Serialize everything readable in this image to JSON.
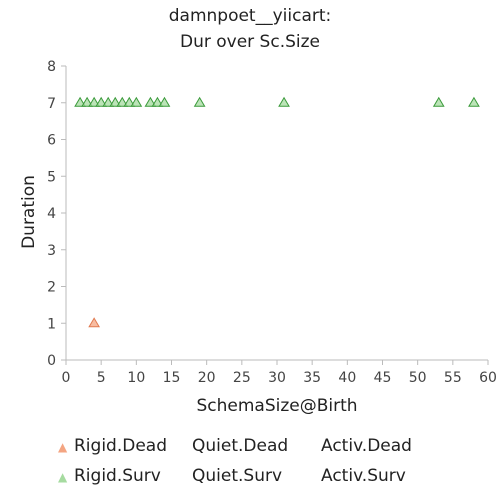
{
  "chart_data": {
    "type": "scatter",
    "title_lines": [
      "damnpoet__yiicart:",
      "Dur over Sc.Size"
    ],
    "xlabel": "SchemaSize@Birth",
    "ylabel": "Duration",
    "xlim": [
      0,
      60
    ],
    "ylim": [
      0,
      8
    ],
    "xticks": [
      0,
      5,
      10,
      15,
      20,
      25,
      30,
      35,
      40,
      45,
      50,
      55,
      60
    ],
    "yticks": [
      0,
      1,
      2,
      3,
      4,
      5,
      6,
      7,
      8
    ],
    "grid": false,
    "marker": "triangle",
    "series": [
      {
        "name": "Rigid.Dead",
        "color": "#f4a582",
        "edge": "#e07a50",
        "points": [
          [
            4,
            1
          ]
        ]
      },
      {
        "name": "Quiet.Dead",
        "color": null,
        "points": []
      },
      {
        "name": "Activ.Dead",
        "color": null,
        "points": []
      },
      {
        "name": "Rigid.Surv",
        "color": "#a6dba0",
        "edge": "#3a9a3a",
        "points": [
          [
            2,
            7
          ],
          [
            3,
            7
          ],
          [
            4,
            7
          ],
          [
            5,
            7
          ],
          [
            6,
            7
          ],
          [
            7,
            7
          ],
          [
            8,
            7
          ],
          [
            9,
            7
          ],
          [
            10,
            7
          ],
          [
            12,
            7
          ],
          [
            13,
            7
          ],
          [
            14,
            7
          ],
          [
            19,
            7
          ],
          [
            31,
            7
          ],
          [
            53,
            7
          ],
          [
            58,
            7
          ]
        ]
      },
      {
        "name": "Quiet.Surv",
        "color": null,
        "points": []
      },
      {
        "name": "Activ.Surv",
        "color": null,
        "points": []
      }
    ],
    "legend": {
      "placement": "bottom",
      "rows": [
        [
          "Rigid.Dead",
          "Quiet.Dead",
          "Activ.Dead"
        ],
        [
          "Rigid.Surv",
          "Quiet.Surv",
          "Activ.Surv"
        ]
      ]
    }
  }
}
